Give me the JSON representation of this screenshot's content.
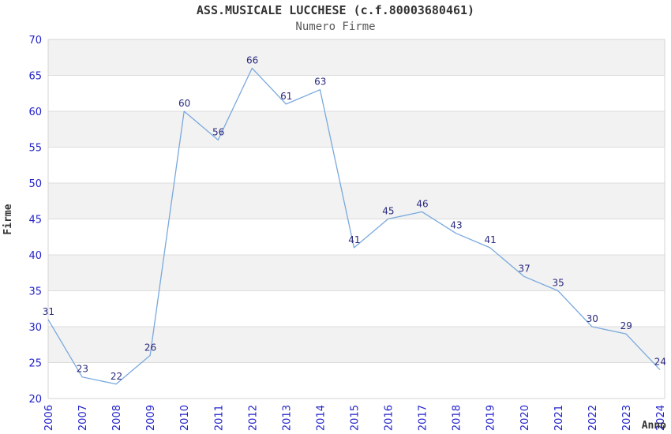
{
  "chart_data": {
    "type": "line",
    "title": "ASS.MUSICALE LUCCHESE (c.f.80003680461)",
    "subtitle": "Numero Firme",
    "xlabel": "Anno",
    "ylabel": "Firme",
    "categories": [
      "2006",
      "2007",
      "2008",
      "2009",
      "2010",
      "2011",
      "2012",
      "2013",
      "2014",
      "2015",
      "2016",
      "2017",
      "2018",
      "2019",
      "2020",
      "2021",
      "2022",
      "2023",
      "2024"
    ],
    "series": [
      {
        "name": "Numero Firme",
        "values": [
          31,
          23,
          22,
          26,
          60,
          56,
          66,
          61,
          63,
          41,
          45,
          46,
          43,
          41,
          37,
          35,
          30,
          29,
          24
        ]
      }
    ],
    "ylim": [
      20,
      70
    ],
    "yticks": [
      20,
      25,
      30,
      35,
      40,
      45,
      50,
      55,
      60,
      65,
      70
    ],
    "grid": true,
    "legend": false,
    "data_labels": true,
    "x_tick_rotation": -90,
    "style": {
      "line_color": "#79a9dd",
      "band_color": "#f2f2f2",
      "grid_color": "#dcdcdc",
      "border_color": "#d4d4d4",
      "tick_label_color": "#2222cc",
      "data_label_color": "#29297e",
      "title_color": "#333333",
      "subtitle_color": "#595959",
      "axis_title_color": "#333333",
      "background_color": "#ffffff"
    }
  }
}
